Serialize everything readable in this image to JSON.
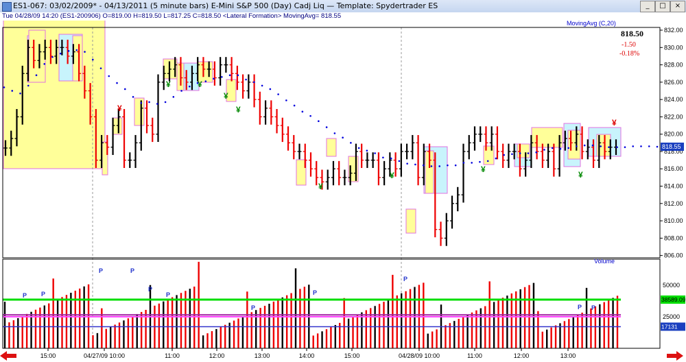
{
  "window": {
    "title": "ES1-067:  03/02/2009* - 04/13/2011  (5 minute bars)    E-Mini S&P 500 (Day) Cadj Liq  —  Template:  Spydertrader ES",
    "minimize_glyph": "_",
    "maximize_glyph": "□",
    "close_glyph": "×"
  },
  "infobar": {
    "text": "Tue  04/28/09 14:20 (ES1-200906)  O=819.00  H=819.50  L=817.25  C=818.50  <Lateral Formation>  MovingAvg= 818.55"
  },
  "price_panel": {
    "indicator_label": "MovingAvg (C,20)",
    "last_close": "818.50",
    "change": "-1.50",
    "change_pct": "-0.18%",
    "last_value_tag": "818.55",
    "y_ticks": [
      "832.00",
      "830.00",
      "828.00",
      "826.00",
      "824.00",
      "822.00",
      "820.00",
      "818.00",
      "816.00",
      "814.00",
      "812.00",
      "810.00",
      "808.00",
      "806.00"
    ]
  },
  "volume_panel": {
    "label": "Volume",
    "y_ticks": [
      "50000",
      "25000"
    ],
    "tags": [
      "38589.09",
      "17131"
    ],
    "marker_letter": "P"
  },
  "x_axis": {
    "labels": [
      "15:00",
      "04/27/09 10:00",
      "11:00",
      "12:00",
      "13:00",
      "14:00",
      "15:00",
      "04/28/09 10:00",
      "11:00",
      "12:00",
      "13:00"
    ]
  },
  "colors": {
    "up_bar": "#000000",
    "down_bar": "#ee0000",
    "moving_avg": "#0000dd",
    "box_yellow": "#ffff99",
    "box_cyan": "#c8f4fc",
    "box_border_magenta": "#e070e0",
    "box_border_navy": "#000080",
    "volume_green": "#00dd00",
    "volume_purple": "#a020a0",
    "volume_magenta": "#ff44ff",
    "volume_blue": "#3333cc",
    "markers_green": "#008800",
    "markers_red": "#dd0000"
  },
  "chart_data": {
    "type": "bar",
    "title": "E-Mini S&P 500 (Day) Cadj Liq",
    "interval": "5 minute bars",
    "ylim": [
      805,
      833.5
    ],
    "volume_ylim": [
      0,
      74000
    ],
    "close_series": [
      818.4,
      819.5,
      822,
      827,
      830,
      828.5,
      829.5,
      830,
      829,
      830,
      830,
      829,
      829.5,
      827,
      825,
      822,
      817,
      819,
      818.5,
      821,
      822,
      817,
      817,
      819,
      823,
      821,
      820,
      826,
      827,
      827.5,
      828,
      826.5,
      826,
      827,
      828,
      827.5,
      827.5,
      826.5,
      828,
      828,
      827,
      826,
      825,
      826,
      824,
      822,
      823,
      822,
      821,
      820,
      819,
      818,
      818,
      817,
      816,
      815,
      814.5,
      815,
      816,
      815,
      815,
      815.5,
      818,
      817,
      817,
      817,
      815,
      816,
      817,
      816,
      818,
      818,
      819,
      815,
      818,
      817,
      809,
      808,
      810,
      812,
      813,
      818,
      819,
      820,
      820,
      819,
      820,
      818,
      817,
      818,
      818,
      816,
      817,
      819,
      818,
      817,
      818,
      816,
      819,
      819.5,
      819,
      820,
      818,
      818.5,
      817,
      819,
      818,
      818.5,
      818.5
    ],
    "moving_average": [
      825.4,
      825,
      824.7,
      825.6,
      826.8,
      828.1,
      828.9,
      829.3,
      829.6,
      829.7,
      829.5,
      828.6,
      827.6,
      826.7,
      825.9,
      825.2,
      824.3,
      823.6,
      823.7,
      823.5,
      823.7,
      824.3,
      825,
      825.5,
      825.9,
      826.1,
      826.4,
      826.6,
      826.8,
      826.8,
      826.3,
      826,
      825.6,
      825.2,
      824.6,
      823.9,
      823.3,
      822.6,
      822.1,
      821.5,
      820.8,
      820.1,
      819.6,
      819,
      818.4,
      818.1,
      817.8,
      817.3,
      817.2,
      816.9,
      816.6,
      816.5,
      816.4,
      816.3,
      816.3,
      816.4,
      816.4,
      816.7,
      816.7,
      816.8,
      816.9,
      817.2,
      817.6,
      817.7,
      817.8,
      817.8,
      817.9,
      818.2,
      818.4,
      818.3,
      818.4,
      818.6,
      818.7,
      818.7,
      818.6,
      818.5,
      818.5,
      818.5,
      818.6,
      818.6,
      818.6,
      818.55
    ],
    "volume_references": {
      "green": 38589.09,
      "purple": 26500,
      "magenta": 25000,
      "blue": 17131
    }
  }
}
